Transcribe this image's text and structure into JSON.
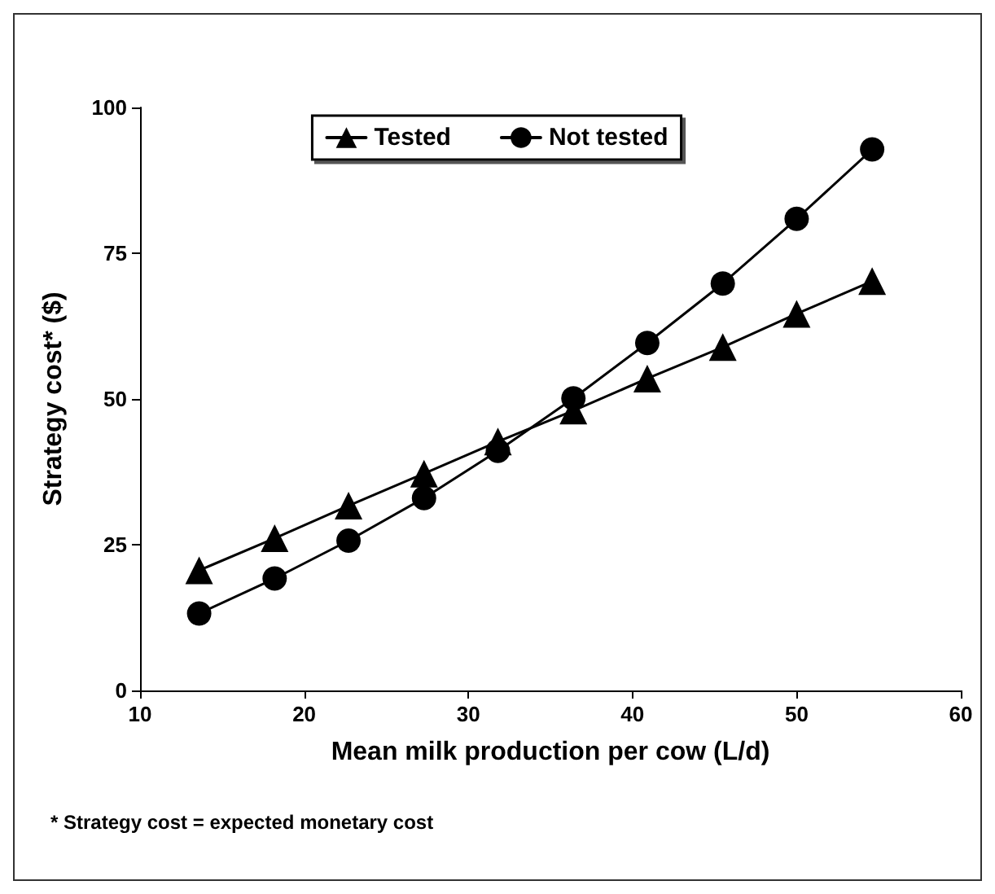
{
  "chart_data": {
    "type": "line",
    "xlabel": "Mean milk production per cow (L/d)",
    "ylabel": "Strategy cost* ($)",
    "annotations": [
      "* Strategy cost = expected monetary cost"
    ],
    "x": [
      13.6,
      18.2,
      22.7,
      27.3,
      31.8,
      36.4,
      40.9,
      45.5,
      50,
      54.6
    ],
    "series": [
      {
        "name": "Tested",
        "color": "#000000",
        "marker": "triangle",
        "values": [
          20.6,
          26.1,
          31.7,
          37.2,
          42.7,
          48.0,
          53.5,
          58.9,
          64.6,
          70.2
        ]
      },
      {
        "name": "Not tested",
        "color": "#000000",
        "marker": "circle",
        "values": [
          13.2,
          19.2,
          25.7,
          33.0,
          41.1,
          50.1,
          59.6,
          69.8,
          80.9,
          92.8
        ]
      }
    ],
    "xlim": [
      10,
      60
    ],
    "xticks": [
      10,
      20,
      30,
      40,
      50,
      60
    ],
    "ylim": [
      0,
      100
    ],
    "yticks": [
      0,
      25,
      50,
      75,
      100
    ],
    "grid": false,
    "legend": "top",
    "line_style": "solid"
  }
}
